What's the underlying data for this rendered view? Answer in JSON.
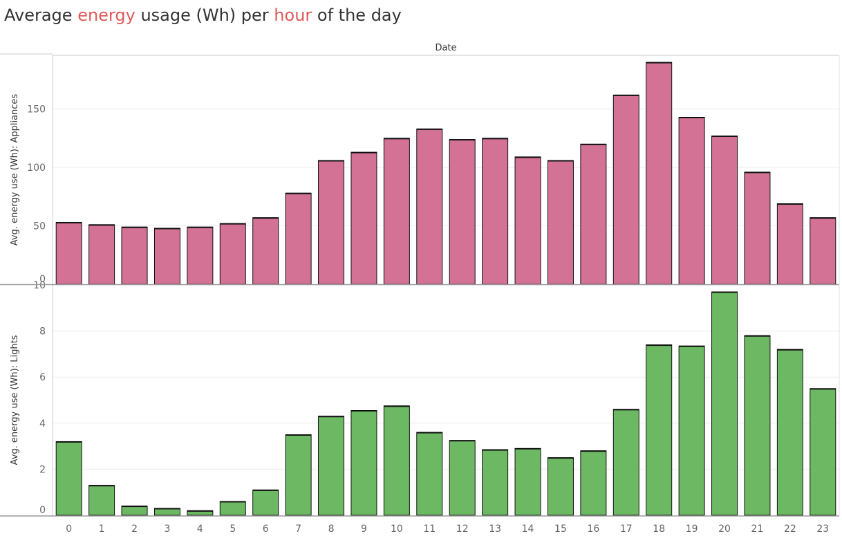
{
  "title": {
    "part1": "Average ",
    "hl1": "energy",
    "part2": " usage (Wh) per ",
    "hl2": "hour",
    "part3": " of the day"
  },
  "colors": {
    "title_highlight": "#e05a5a",
    "appliances_bar": "#d37295",
    "lights_bar": "#6db963",
    "bar_outline": "#111111"
  },
  "chart_data": [
    {
      "type": "bar",
      "title": "Average energy usage (Wh) per hour of the day",
      "column_header": "Date",
      "xlabel": "",
      "ylabel": "Avg. energy use (Wh): Appliances",
      "categories": [
        "0",
        "1",
        "2",
        "3",
        "4",
        "5",
        "6",
        "7",
        "8",
        "9",
        "10",
        "11",
        "12",
        "13",
        "14",
        "15",
        "16",
        "17",
        "18",
        "19",
        "20",
        "21",
        "22",
        "23"
      ],
      "values": [
        53,
        51,
        49,
        48,
        49,
        52,
        57,
        78,
        106,
        113,
        125,
        133,
        124,
        125,
        109,
        106,
        120,
        162,
        190,
        143,
        127,
        96,
        69,
        57
      ],
      "ylim": [
        0,
        196
      ],
      "yticks": [
        0,
        50,
        100,
        150
      ],
      "grid": true,
      "legend": "none"
    },
    {
      "type": "bar",
      "xlabel": "",
      "ylabel": "Avg. energy use (Wh): Lights",
      "categories": [
        "0",
        "1",
        "2",
        "3",
        "4",
        "5",
        "6",
        "7",
        "8",
        "9",
        "10",
        "11",
        "12",
        "13",
        "14",
        "15",
        "16",
        "17",
        "18",
        "19",
        "20",
        "21",
        "22",
        "23"
      ],
      "values": [
        3.2,
        1.3,
        0.4,
        0.3,
        0.2,
        0.6,
        1.1,
        3.5,
        4.3,
        4.55,
        4.75,
        3.6,
        3.25,
        2.85,
        2.9,
        2.5,
        2.8,
        4.6,
        7.4,
        7.35,
        9.7,
        7.8,
        7.2,
        5.5
      ],
      "ylim": [
        0,
        10
      ],
      "yticks": [
        0,
        2,
        4,
        6,
        8,
        10
      ],
      "grid": true,
      "legend": "none"
    }
  ]
}
